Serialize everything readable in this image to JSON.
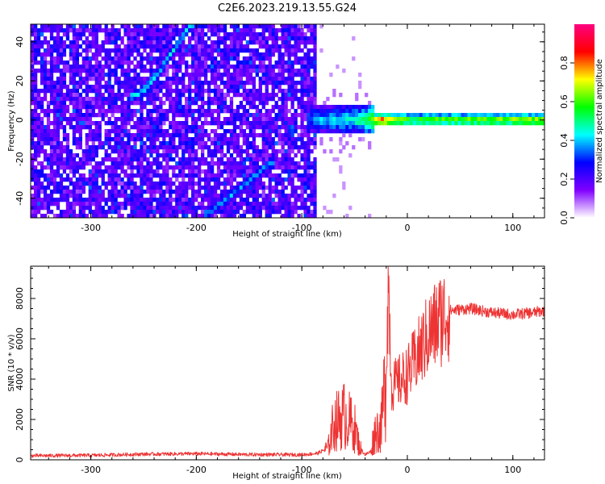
{
  "title": "C2E6.2023.219.13.55.G24",
  "chart_data": [
    {
      "type": "heatmap",
      "title": "C2E6.2023.219.13.55.G24",
      "xlabel": "Height of straight line (km)",
      "ylabel": "Frequency (Hz)",
      "xlim": [
        -357,
        130
      ],
      "ylim": [
        -50,
        49
      ],
      "x_ticks": [
        "-300",
        "-200",
        "-100",
        "0",
        "100"
      ],
      "y_ticks": [
        "-40",
        "-20",
        "0",
        "20",
        "40"
      ],
      "colorbar": {
        "label": "Normalized spectral amplitude",
        "range": [
          0,
          1
        ],
        "ticks": [
          "0.0",
          "0.2",
          "0.4",
          "0.6",
          "0.8"
        ],
        "colormap": "rainbow",
        "colors": [
          "#ffffff",
          "#8000ff",
          "#0000ff",
          "#00ffff",
          "#00ff00",
          "#ffff00",
          "#ff0000",
          "#ff0080"
        ]
      },
      "features": [
        {
          "kind": "noise",
          "x_range": [
            -357,
            -85
          ],
          "y_range": [
            -50,
            49
          ],
          "amplitude": 0.25
        },
        {
          "kind": "ridge",
          "x": [
            -260,
            -250,
            -235,
            -220,
            -205
          ],
          "y": [
            12,
            15,
            25,
            37,
            49
          ],
          "amplitude": 0.4
        },
        {
          "kind": "ridge",
          "x": [
            -190,
            -170,
            -150,
            -130
          ],
          "y": [
            -48,
            -40,
            -31,
            -22
          ],
          "amplitude": 0.35
        },
        {
          "kind": "band",
          "x_range": [
            -95,
            130
          ],
          "y_center": 0,
          "amplitude_profile": {
            "x": [
              -95,
              -40,
              -25,
              0,
              60,
              130
            ],
            "value": [
              0.35,
              0.5,
              0.85,
              0.6,
              0.65,
              0.7
            ]
          }
        }
      ]
    },
    {
      "type": "line",
      "xlabel": "Height of straight line (km)",
      "ylabel": "SNR (10 * v/v)",
      "xlim": [
        -357,
        130
      ],
      "ylim": [
        0,
        9600
      ],
      "x_ticks": [
        "-300",
        "-200",
        "-100",
        "0",
        "100"
      ],
      "y_ticks": [
        "0",
        "2000",
        "4000",
        "6000",
        "8000"
      ],
      "color": "#ee3333",
      "series": [
        {
          "x": [
            -357,
            -300,
            -250,
            -200,
            -150,
            -100,
            -85,
            -75,
            -70,
            -60,
            -50,
            -45,
            -40,
            -35,
            -30,
            -25,
            -20,
            -18,
            -15,
            -10,
            0,
            10,
            20,
            30,
            40,
            60,
            80,
            100,
            120,
            130
          ],
          "y": [
            200,
            220,
            280,
            300,
            260,
            250,
            320,
            600,
            1800,
            2200,
            1600,
            600,
            250,
            400,
            1500,
            1500,
            4500,
            9200,
            3600,
            3800,
            4200,
            5200,
            6200,
            6900,
            7400,
            7500,
            7300,
            7200,
            7300,
            7400
          ]
        }
      ]
    }
  ]
}
